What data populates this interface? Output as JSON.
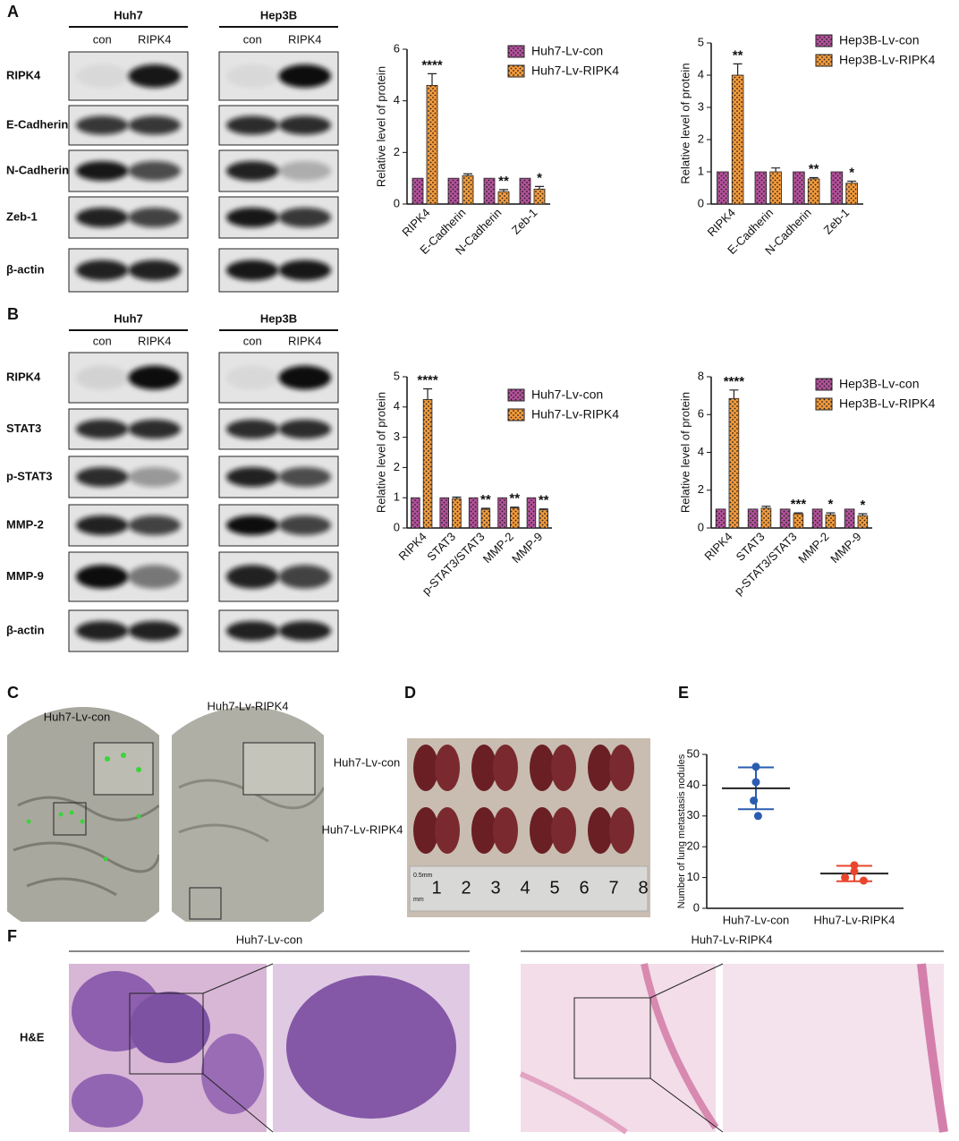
{
  "panels": [
    "A",
    "B",
    "C",
    "D",
    "E",
    "F"
  ],
  "blots_a": {
    "cell_lines": [
      "Huh7",
      "Hep3B"
    ],
    "lanes": [
      "con",
      "RIPK4"
    ],
    "rows": [
      "RIPK4",
      "E-Cadherin",
      "N-Cadherin",
      "Zeb-1",
      "β-actin"
    ]
  },
  "blots_b": {
    "cell_lines": [
      "Huh7",
      "Hep3B"
    ],
    "lanes": [
      "con",
      "RIPK4"
    ],
    "rows": [
      "RIPK4",
      "STAT3",
      "p-STAT3",
      "MMP-2",
      "MMP-9",
      "β-actin"
    ]
  },
  "chart_data": [
    {
      "type": "bar",
      "ylabel": "Relative level  of protein",
      "categories": [
        "RIPK4",
        "E-Cadherin",
        "N-Cadherin",
        "Zeb-1"
      ],
      "series": [
        {
          "name": "Huh7-Lv-con",
          "color": "#b4519b",
          "values": [
            1,
            1,
            1,
            1
          ]
        },
        {
          "name": "Huh7-Lv-RIPK4",
          "color": "#f39a3b",
          "values": [
            4.6,
            1.1,
            0.48,
            0.58
          ],
          "errors": [
            0.45,
            0.07,
            0.08,
            0.1
          ]
        }
      ],
      "significance": [
        "****",
        null,
        "**",
        "*"
      ],
      "ylim": [
        0,
        6
      ],
      "yticks": [
        0,
        2,
        4,
        6
      ]
    },
    {
      "type": "bar",
      "ylabel": "Relative level  of protein",
      "categories": [
        "RIPK4",
        "E-Cadherin",
        "N-Cadherin",
        "Zeb-1"
      ],
      "series": [
        {
          "name": "Hep3B-Lv-con",
          "color": "#b4519b",
          "values": [
            1,
            1,
            1,
            1
          ]
        },
        {
          "name": "Hep3B-Lv-RIPK4",
          "color": "#f39a3b",
          "values": [
            4.0,
            1.0,
            0.78,
            0.65
          ],
          "errors": [
            0.35,
            0.12,
            0.04,
            0.06
          ]
        }
      ],
      "significance": [
        "**",
        null,
        "**",
        "*"
      ],
      "ylim": [
        0,
        5
      ],
      "yticks": [
        0,
        1,
        2,
        3,
        4,
        5
      ]
    },
    {
      "type": "bar",
      "ylabel": "Relative level  of protein",
      "categories": [
        "RIPK4",
        "STAT3",
        "p-STAT3/STAT3",
        "MMP-2",
        "MMP-9"
      ],
      "series": [
        {
          "name": "Huh7-Lv-con",
          "color": "#b4519b",
          "values": [
            1,
            1,
            1,
            1,
            1
          ]
        },
        {
          "name": "Huh7-Lv-RIPK4",
          "color": "#f39a3b",
          "values": [
            4.25,
            0.97,
            0.62,
            0.66,
            0.6
          ],
          "errors": [
            0.35,
            0.05,
            0.03,
            0.03,
            0.03
          ]
        }
      ],
      "significance": [
        "****",
        null,
        "**",
        "**",
        "**"
      ],
      "ylim": [
        0,
        5
      ],
      "yticks": [
        0,
        1,
        2,
        3,
        4,
        5
      ]
    },
    {
      "type": "bar",
      "ylabel": "Relative level  of protein",
      "categories": [
        "RIPK4",
        "STAT3",
        "p-STAT3/STAT3",
        "MMP-2",
        "MMP-9"
      ],
      "series": [
        {
          "name": "Hep3B-Lv-con",
          "color": "#b4519b",
          "values": [
            1,
            1,
            1,
            1,
            1
          ]
        },
        {
          "name": "Hep3B-Lv-RIPK4",
          "color": "#f39a3b",
          "values": [
            6.85,
            1.05,
            0.75,
            0.7,
            0.65
          ],
          "errors": [
            0.45,
            0.1,
            0.05,
            0.1,
            0.1
          ]
        }
      ],
      "significance": [
        "****",
        null,
        "***",
        "*",
        "*"
      ],
      "ylim": [
        0,
        8
      ],
      "yticks": [
        0,
        2,
        4,
        6,
        8
      ]
    },
    {
      "type": "scatter",
      "ylabel": "Number of lung metastasis nodules",
      "categories": [
        "Huh7-Lv-con",
        "Hhu7-Lv-RIPK4"
      ],
      "groups": [
        {
          "color": "#2a5db0",
          "values": [
            46,
            41,
            35,
            30
          ],
          "mean": 39,
          "sd": 6.8
        },
        {
          "color": "#e8452c",
          "values": [
            14,
            12,
            10,
            9
          ],
          "mean": 11.3,
          "sd": 2.5
        }
      ],
      "ylim": [
        0,
        50
      ],
      "yticks": [
        0,
        10,
        20,
        30,
        40,
        50
      ]
    }
  ],
  "panel_c": {
    "labels": [
      "Huh7-Lv-con",
      "Huh7-Lv-RIPK4"
    ]
  },
  "panel_d": {
    "rows": [
      "Huh7-Lv-con",
      "Huh7-Lv-RIPK4"
    ],
    "ruler": [
      1,
      2,
      3,
      4,
      5,
      6,
      7,
      8
    ],
    "ruler_units": [
      "0.5mm",
      "mm"
    ]
  },
  "panel_f": {
    "groups": [
      "Huh7-Lv-con",
      "Huh7-Lv-RIPK4"
    ],
    "stain": "H&E"
  }
}
